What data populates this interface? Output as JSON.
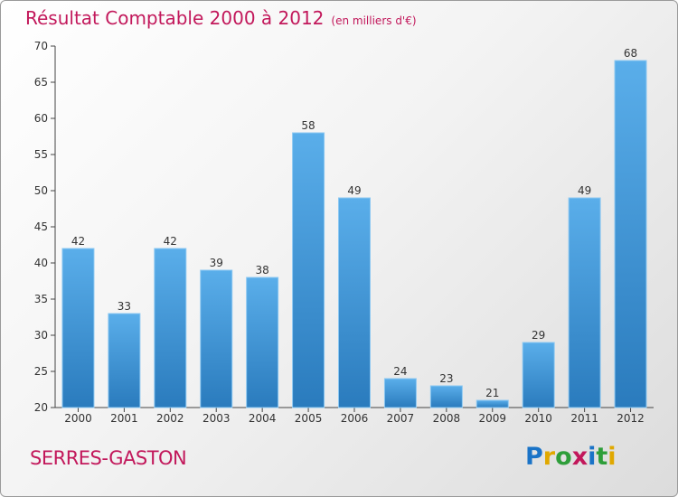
{
  "title": "Résultat Comptable 2000 à 2012",
  "subtitle": "(en milliers d'€)",
  "location": "SERRES-GASTON",
  "logo": {
    "letters": [
      "P",
      "r",
      "o",
      "x",
      "i",
      "t",
      "i"
    ],
    "colors": [
      "#1a73c7",
      "#e0a800",
      "#2e9e3a",
      "#c2185b",
      "#1a73c7",
      "#2e9e3a",
      "#e0a800"
    ]
  },
  "colors": {
    "bar_top": "#5aaeea",
    "bar_bottom": "#2a7bbd",
    "title": "#c2185b"
  },
  "chart_data": {
    "type": "bar",
    "title": "Résultat Comptable 2000 à 2012",
    "subtitle": "(en milliers d'€)",
    "categories": [
      "2000",
      "2001",
      "2002",
      "2003",
      "2004",
      "2005",
      "2006",
      "2007",
      "2008",
      "2009",
      "2010",
      "2011",
      "2012"
    ],
    "values": [
      42,
      33,
      42,
      39,
      38,
      58,
      49,
      24,
      23,
      21,
      29,
      49,
      68
    ],
    "ylim": [
      20,
      70
    ],
    "yticks": [
      20,
      25,
      30,
      35,
      40,
      45,
      50,
      55,
      60,
      65,
      70
    ],
    "grid": false
  }
}
